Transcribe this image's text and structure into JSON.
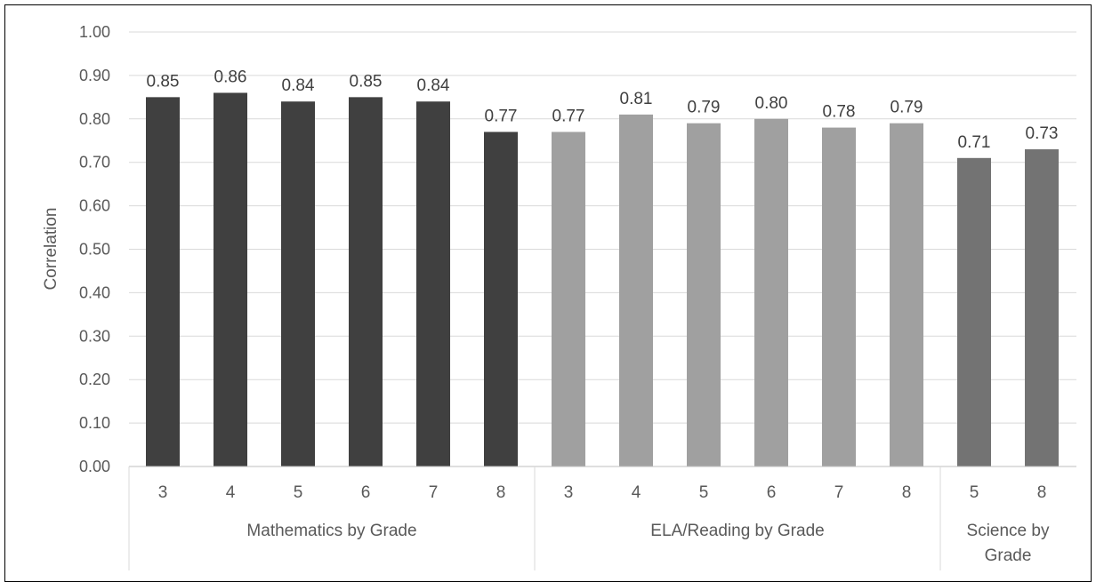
{
  "chart_data": {
    "type": "bar",
    "ylabel": "Correlation",
    "ylim": [
      0,
      1.0
    ],
    "yticks": [
      "0.00",
      "0.10",
      "0.20",
      "0.30",
      "0.40",
      "0.50",
      "0.60",
      "0.70",
      "0.80",
      "0.90",
      "1.00"
    ],
    "grid": true,
    "groups": [
      {
        "name": "Mathematics by Grade",
        "color": "#404040",
        "categories": [
          "3",
          "4",
          "5",
          "6",
          "7",
          "8"
        ],
        "values": [
          0.85,
          0.86,
          0.84,
          0.85,
          0.84,
          0.77
        ],
        "labels": [
          "0.85",
          "0.86",
          "0.84",
          "0.85",
          "0.84",
          "0.77"
        ]
      },
      {
        "name": "ELA/Reading by Grade",
        "color": "#a0a0a0",
        "categories": [
          "3",
          "4",
          "5",
          "6",
          "7",
          "8"
        ],
        "values": [
          0.77,
          0.81,
          0.79,
          0.8,
          0.78,
          0.79
        ],
        "labels": [
          "0.77",
          "0.81",
          "0.79",
          "0.80",
          "0.78",
          "0.79"
        ]
      },
      {
        "name": "Science by Grade",
        "name_lines": [
          "Science by",
          "Grade"
        ],
        "color": "#737373",
        "categories": [
          "5",
          "8"
        ],
        "values": [
          0.71,
          0.73
        ],
        "labels": [
          "0.71",
          "0.73"
        ]
      }
    ]
  }
}
